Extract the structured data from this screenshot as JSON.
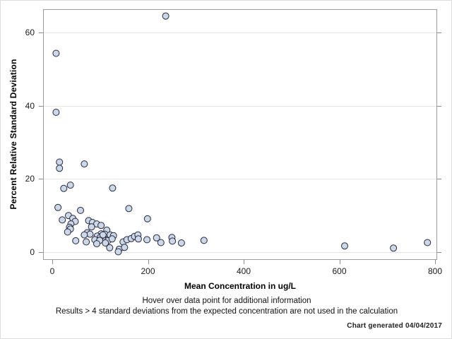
{
  "chart_data": {
    "type": "scatter",
    "title": "",
    "xlabel": "Mean Concentration in ug/L",
    "ylabel": "Percent Relative Standard Deviation",
    "xlim": [
      0,
      800
    ],
    "ylim": [
      0,
      60
    ],
    "x_ticks": [
      0,
      200,
      400,
      600,
      800
    ],
    "y_ticks": [
      0,
      20,
      40,
      60
    ],
    "grid": "horizontal-at-y-ticks",
    "legend": "none",
    "marker": {
      "shape": "circle",
      "fill": "#ccd8e8",
      "stroke": "#26263c",
      "radius": 4.5
    },
    "points": [
      [
        237,
        64.5
      ],
      [
        8,
        54.3
      ],
      [
        8,
        38.2
      ],
      [
        15,
        24.6
      ],
      [
        15,
        22.9
      ],
      [
        67,
        24.1
      ],
      [
        38,
        18.3
      ],
      [
        24,
        17.4
      ],
      [
        126,
        17.5
      ],
      [
        12,
        12.2
      ],
      [
        59,
        11.4
      ],
      [
        160,
        11.9
      ],
      [
        199,
        9.1
      ],
      [
        34,
        10.0
      ],
      [
        43,
        9.2
      ],
      [
        21,
        8.8
      ],
      [
        48,
        8.4
      ],
      [
        39,
        7.7
      ],
      [
        36,
        6.8
      ],
      [
        38,
        6.3
      ],
      [
        32,
        5.5
      ],
      [
        49,
        3.1
      ],
      [
        76,
        8.6
      ],
      [
        84,
        8.1
      ],
      [
        93,
        7.7
      ],
      [
        82,
        6.9
      ],
      [
        73,
        5.3
      ],
      [
        79,
        4.9
      ],
      [
        67,
        4.7
      ],
      [
        71,
        2.8
      ],
      [
        102,
        7.3
      ],
      [
        114,
        6.0
      ],
      [
        102,
        5.0
      ],
      [
        110,
        4.9
      ],
      [
        121,
        4.7
      ],
      [
        128,
        4.5
      ],
      [
        105,
        3.7
      ],
      [
        116,
        3.1
      ],
      [
        125,
        3.6
      ],
      [
        111,
        2.5
      ],
      [
        94,
        4.4
      ],
      [
        101,
        4.1
      ],
      [
        106,
        4.7
      ],
      [
        89,
        3.4
      ],
      [
        99,
        3.2
      ],
      [
        93,
        2.3
      ],
      [
        120,
        1.2
      ],
      [
        148,
        2.8
      ],
      [
        156,
        3.4
      ],
      [
        165,
        3.7
      ],
      [
        172,
        4.3
      ],
      [
        179,
        4.7
      ],
      [
        140,
        0.8
      ],
      [
        151,
        1.3
      ],
      [
        138,
        0.1
      ],
      [
        180,
        3.6
      ],
      [
        198,
        3.4
      ],
      [
        218,
        3.9
      ],
      [
        227,
        2.6
      ],
      [
        250,
        4.0
      ],
      [
        251,
        3.0
      ],
      [
        270,
        2.5
      ],
      [
        317,
        3.2
      ],
      [
        611,
        1.7
      ],
      [
        713,
        1.1
      ],
      [
        784,
        2.6
      ]
    ]
  },
  "footer": {
    "note_line1": "Hover over data point for additional information",
    "note_line2": "Results > 4 standard deviations from the expected concentration are not used in the calculation",
    "generated": "Chart generated 04/04/2017"
  },
  "colors": {
    "frame": "#9c9c9c",
    "grid": "#e4e4e4",
    "tick": "#8c8c8c",
    "text": "#000000",
    "figure_border": "#dcdcdc"
  }
}
